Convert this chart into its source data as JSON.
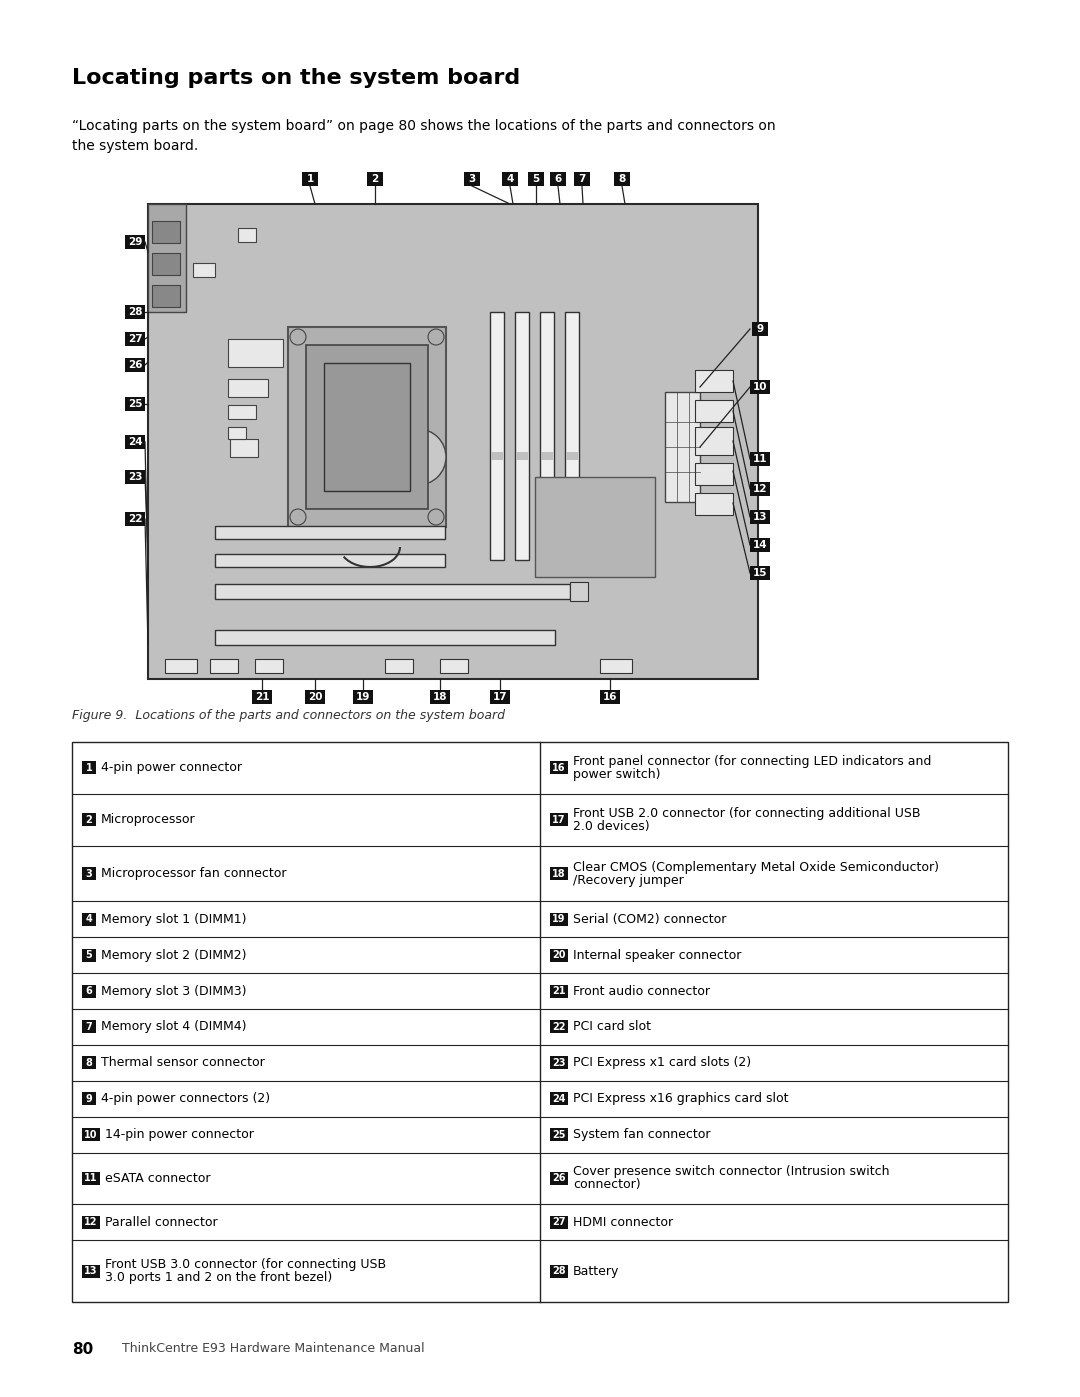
{
  "title": "Locating parts on the system board",
  "subtitle": "“Locating parts on the system board” on page 80 shows the locations of the parts and connectors on\nthe system board.",
  "figure_caption": "Figure 9.  Locations of the parts and connectors on the system board",
  "footer_num": "80",
  "footer_text": "ThinkCentre E93 Hardware Maintenance Manual",
  "bg_color": "#ffffff",
  "table_entries": [
    [
      "1",
      "4-pin power connector",
      "16",
      "Front panel connector (for connecting LED indicators and\npower switch)"
    ],
    [
      "2",
      "Microprocessor",
      "17",
      "Front USB 2.0 connector (for connecting additional USB\n2.0 devices)"
    ],
    [
      "3",
      "Microprocessor fan connector",
      "18",
      "Clear CMOS (Complementary Metal Oxide Semiconductor)\n/Recovery jumper"
    ],
    [
      "4",
      "Memory slot 1 (DIMM1)",
      "19",
      "Serial (COM2) connector"
    ],
    [
      "5",
      "Memory slot 2 (DIMM2)",
      "20",
      "Internal speaker connector"
    ],
    [
      "6",
      "Memory slot 3 (DIMM3)",
      "21",
      "Front audio connector"
    ],
    [
      "7",
      "Memory slot 4 (DIMM4)",
      "22",
      "PCI card slot"
    ],
    [
      "8",
      "Thermal sensor connector",
      "23",
      "PCI Express x1 card slots (2)"
    ],
    [
      "9",
      "4-pin power connectors (2)",
      "24",
      "PCI Express x16 graphics card slot"
    ],
    [
      "10",
      "14-pin power connector",
      "25",
      "System fan connector"
    ],
    [
      "11",
      "eSATA connector",
      "26",
      "Cover presence switch connector (Intrusion switch\nconnector)"
    ],
    [
      "12",
      "Parallel connector",
      "27",
      "HDMI connector"
    ],
    [
      "13",
      "Front USB 3.0 connector (for connecting USB\n3.0 ports 1 and 2 on the front bezel)",
      "28",
      "Battery"
    ]
  ],
  "board_color": "#c0c0c0",
  "board_edge": "#2a2a2a",
  "component_fill": "#e8e8e8",
  "component_edge": "#444444"
}
